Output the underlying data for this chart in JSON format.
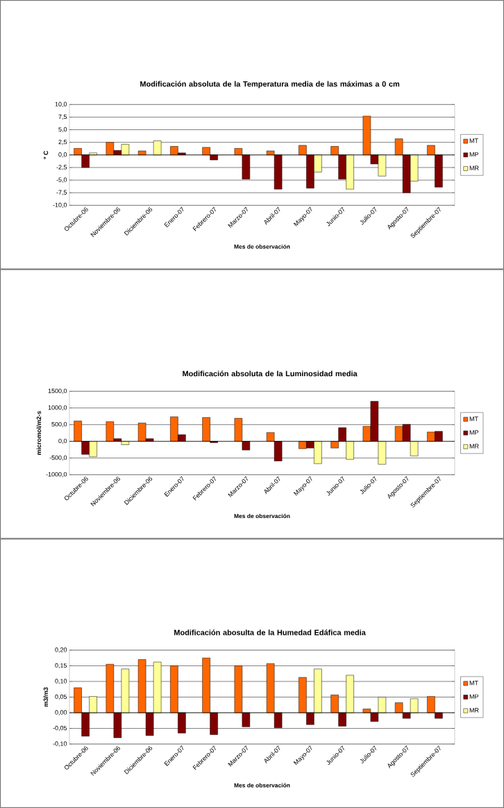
{
  "chart_data": [
    {
      "type": "bar",
      "title": "Modificación absoluta de la Temperatura media de las máximas a 0 cm",
      "xlabel": "Mes de observación",
      "ylabel": "º C",
      "categories": [
        "Octubre-06",
        "Noviembre-06",
        "Diciembre-06",
        "Enero-07",
        "Febrero-07",
        "Marzo-07",
        "Abril-07",
        "Mayo-07",
        "Junio-07",
        "Julio-07",
        "Agosto-07",
        "Septiembre-07"
      ],
      "series": [
        {
          "name": "MT",
          "color": "#ff6600",
          "values": [
            1.3,
            2.5,
            0.8,
            1.7,
            1.5,
            1.3,
            0.8,
            1.9,
            1.7,
            7.7,
            3.2,
            1.9
          ]
        },
        {
          "name": "MP",
          "color": "#800000",
          "values": [
            -2.5,
            0.9,
            null,
            0.4,
            -1.0,
            -4.8,
            -6.8,
            -6.6,
            -4.8,
            -1.8,
            -7.5,
            -6.4
          ]
        },
        {
          "name": "MR",
          "color": "#ffff99",
          "values": [
            0.4,
            2.1,
            2.8,
            null,
            null,
            null,
            null,
            -3.4,
            -6.8,
            -4.2,
            -5.2,
            null
          ]
        }
      ],
      "ylim": [
        -10,
        10
      ],
      "yticks": [
        {
          "value": -10,
          "label": "-10,0"
        },
        {
          "value": -7.5,
          "label": "-7,5"
        },
        {
          "value": -5,
          "label": "-5,0"
        },
        {
          "value": -2.5,
          "label": "-2,5"
        },
        {
          "value": 0,
          "label": "0,0"
        },
        {
          "value": 2.5,
          "label": "2,5"
        },
        {
          "value": 5,
          "label": "5,0"
        },
        {
          "value": 7.5,
          "label": "7,5"
        },
        {
          "value": 10,
          "label": "10,0"
        }
      ],
      "grid": "y",
      "legend": "right"
    },
    {
      "type": "bar",
      "title": "Modificación absoluta de la Luminosidad media",
      "xlabel": "Mes de observación",
      "ylabel": "micromol/m2-s",
      "categories": [
        "Octubre-06",
        "Noviembre-06",
        "Diciembre-06",
        "Enero-07",
        "Febrero-07",
        "Marzo-07",
        "Abril-07",
        "Mayo-07",
        "Junio-07",
        "Julio-07",
        "Agosto-07",
        "Septiembre-07"
      ],
      "series": [
        {
          "name": "MT",
          "color": "#ff6600",
          "values": [
            610,
            590,
            550,
            735,
            715,
            690,
            265,
            -220,
            -200,
            450,
            450,
            280
          ]
        },
        {
          "name": "MP",
          "color": "#800000",
          "values": [
            -390,
            80,
            80,
            200,
            -40,
            -260,
            -590,
            -200,
            410,
            1200,
            510,
            300
          ]
        },
        {
          "name": "MR",
          "color": "#ffff99",
          "values": [
            -460,
            -100,
            null,
            null,
            null,
            null,
            null,
            -670,
            -540,
            -690,
            -440,
            null
          ]
        }
      ],
      "ylim": [
        -1000,
        1500
      ],
      "yticks": [
        {
          "value": -1000,
          "label": "-1000,0"
        },
        {
          "value": -500,
          "label": "-500,0"
        },
        {
          "value": 0,
          "label": "0,0"
        },
        {
          "value": 500,
          "label": "500,0"
        },
        {
          "value": 1000,
          "label": "1000,0"
        },
        {
          "value": 1500,
          "label": "1500,0"
        }
      ],
      "grid": "y",
      "legend": "right"
    },
    {
      "type": "bar",
      "title": "Modificación abosulta de la Humedad Edáfica media",
      "xlabel": "Mes de observación",
      "ylabel": "m3/m3",
      "categories": [
        "Octubre-06",
        "Noviembre-06",
        "Diciembre-06",
        "Enero-07",
        "Febrero-07",
        "Marzo-07",
        "Abril-07",
        "Mayo-07",
        "Junio-07",
        "Julio-07",
        "Agosto-07",
        "Septiembre-07"
      ],
      "series": [
        {
          "name": "MT",
          "color": "#ff6600",
          "values": [
            0.08,
            0.155,
            0.17,
            0.15,
            0.175,
            0.15,
            0.157,
            0.113,
            0.057,
            0.012,
            0.032,
            0.052
          ]
        },
        {
          "name": "MP",
          "color": "#800000",
          "values": [
            -0.075,
            -0.08,
            -0.073,
            -0.065,
            -0.07,
            -0.045,
            -0.048,
            -0.038,
            -0.043,
            -0.028,
            -0.018,
            -0.018
          ]
        },
        {
          "name": "MR",
          "color": "#ffff99",
          "values": [
            0.052,
            0.14,
            0.162,
            null,
            null,
            null,
            null,
            0.14,
            0.12,
            0.05,
            0.045,
            null
          ]
        }
      ],
      "ylim": [
        -0.1,
        0.2
      ],
      "yticks": [
        {
          "value": -0.1,
          "label": "-0,10"
        },
        {
          "value": -0.05,
          "label": "-0,05"
        },
        {
          "value": 0,
          "label": "0,00"
        },
        {
          "value": 0.05,
          "label": "0,05"
        },
        {
          "value": 0.1,
          "label": "0,10"
        },
        {
          "value": 0.15,
          "label": "0,15"
        },
        {
          "value": 0.2,
          "label": "0,20"
        }
      ],
      "grid": "y",
      "legend": "right"
    }
  ]
}
